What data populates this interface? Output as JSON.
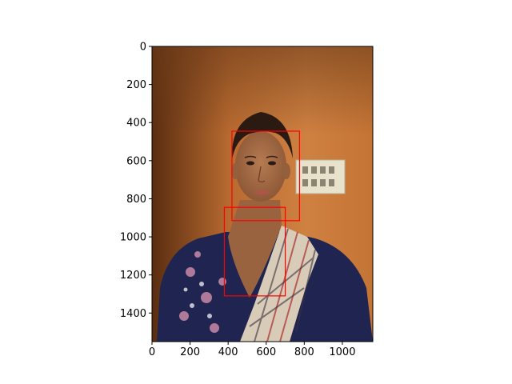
{
  "axes": {
    "xlim": [
      0,
      1160
    ],
    "ylim": [
      1550,
      0
    ],
    "x_ticks": [
      0,
      200,
      400,
      600,
      800,
      1000
    ],
    "x_tick_labels": [
      "0",
      "200",
      "400",
      "600",
      "800",
      "1000"
    ],
    "y_ticks": [
      0,
      200,
      400,
      600,
      800,
      1000,
      1200,
      1400
    ],
    "y_tick_labels": [
      "0",
      "200",
      "400",
      "600",
      "800",
      "1000",
      "1200",
      "1400"
    ]
  },
  "image": {
    "subject": "photo of a woman against an orange wall, wearing a navy floral top and a plaid scarf, light switch board on the wall",
    "colors": {
      "wall": "#c57838",
      "wall_dark": "#5a2d10",
      "top": "#1f2450",
      "scarf": "#d9cfc0",
      "skin": "#a8704a",
      "hair": "#2a1a12"
    }
  },
  "boxes": [
    {
      "label": "face",
      "x0": 420,
      "y0": 445,
      "x1": 775,
      "y1": 915,
      "color": "#ff0000"
    },
    {
      "label": "neck",
      "x0": 380,
      "y0": 845,
      "x1": 700,
      "y1": 1310,
      "color": "#ff0000"
    }
  ]
}
